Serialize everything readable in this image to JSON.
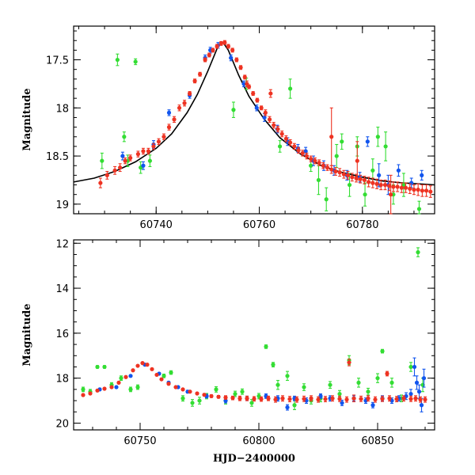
{
  "colors": {
    "green": "#33dd33",
    "blue": "#1155ee",
    "red": "#ee3322",
    "model": "#000000"
  },
  "chart_data": [
    {
      "type": "scatter",
      "panel": "top",
      "xlabel": "",
      "ylabel": "Magnitude",
      "xlim": [
        60724,
        60794
      ],
      "ylim": [
        19.1,
        17.15
      ],
      "y_inverted": true,
      "x_ticks": [
        60740,
        60760,
        60780
      ],
      "y_ticks": [
        17.5,
        18,
        18.5,
        19
      ],
      "x_ticklabels": [
        "60740",
        "60760",
        "60780"
      ],
      "y_ticklabels": [
        "17.5",
        "18",
        "18.5",
        "19"
      ],
      "model_curve": {
        "x": [
          60724,
          60728,
          60732,
          60736,
          60740,
          60743,
          60746,
          60748,
          60750,
          60751,
          60752,
          60753,
          60754,
          60756,
          60758,
          60761,
          60764,
          60768,
          60772,
          60776,
          60780,
          60784,
          60788,
          60794
        ],
        "y": [
          18.77,
          18.73,
          18.66,
          18.56,
          18.42,
          18.27,
          18.05,
          17.86,
          17.62,
          17.49,
          17.36,
          17.32,
          17.4,
          17.66,
          17.88,
          18.12,
          18.31,
          18.48,
          18.6,
          18.67,
          18.72,
          18.76,
          18.78,
          18.8
        ]
      },
      "series": [
        {
          "color": "green",
          "x": [
            60729.5,
            60732.5,
            60733.8,
            60734.5,
            60736,
            60737,
            60738.8,
            60755,
            60757.5,
            60764,
            60766,
            60770,
            60771.5,
            60773,
            60775,
            60776,
            60777.5,
            60779,
            60780.5,
            60782,
            60783,
            60784.5,
            60786,
            60788,
            60791
          ],
          "y": [
            18.55,
            17.5,
            18.3,
            18.55,
            17.52,
            18.62,
            18.55,
            18.02,
            17.75,
            18.4,
            17.8,
            18.6,
            18.75,
            18.95,
            18.5,
            18.35,
            18.8,
            18.4,
            18.9,
            18.65,
            18.3,
            18.4,
            18.9,
            18.8,
            19.05
          ],
          "err": [
            0.08,
            0.06,
            0.05,
            0.06,
            0.03,
            0.06,
            0.06,
            0.08,
            0.06,
            0.06,
            0.1,
            0.06,
            0.15,
            0.12,
            0.12,
            0.08,
            0.12,
            0.1,
            0.12,
            0.12,
            0.1,
            0.15,
            0.1,
            0.12,
            0.08
          ]
        },
        {
          "color": "blue",
          "x": [
            60733.5,
            60737.5,
            60739.5,
            60742.5,
            60746.5,
            60749.5,
            60750.5,
            60752,
            60754.5,
            60757,
            60759.5,
            60761,
            60763.5,
            60765.5,
            60767.5,
            60769,
            60770.5,
            60772.5,
            60774.5,
            60777,
            60779.5,
            60781,
            60783.2,
            60785,
            60787,
            60789.5,
            60791.5
          ],
          "y": [
            18.5,
            18.6,
            18.38,
            18.05,
            17.87,
            17.48,
            17.4,
            17.35,
            17.48,
            17.75,
            18.0,
            18.1,
            18.22,
            18.35,
            18.42,
            18.45,
            18.55,
            18.6,
            18.65,
            18.7,
            18.72,
            18.35,
            18.7,
            18.8,
            18.65,
            18.78,
            18.7
          ],
          "err": [
            0.04,
            0.04,
            0.04,
            0.03,
            0.03,
            0.03,
            0.03,
            0.03,
            0.03,
            0.03,
            0.03,
            0.04,
            0.04,
            0.04,
            0.04,
            0.04,
            0.05,
            0.05,
            0.05,
            0.05,
            0.05,
            0.05,
            0.12,
            0.1,
            0.06,
            0.05,
            0.05
          ]
        },
        {
          "color": "red",
          "x": [
            60729.2,
            60730.5,
            60732,
            60733,
            60734,
            60735,
            60736.5,
            60737.5,
            60738.5,
            60739.5,
            60740.5,
            60741.5,
            60742.5,
            60743.5,
            60744.5,
            60745.5,
            60746.5,
            60747.5,
            60748.5,
            60749.5,
            60750.3,
            60751,
            60751.8,
            60752.6,
            60753.3,
            60754,
            60754.8,
            60755.6,
            60756.4,
            60757.2,
            60758,
            60758.8,
            60759.6,
            60760.4,
            60761.2,
            60762,
            60762.8,
            60763.6,
            60764.4,
            60765.2,
            60766,
            60766.8,
            60767.6,
            60768.4,
            60769.2,
            60770,
            60770.8,
            60771.6,
            60772.4,
            60773.2,
            60774,
            60774.8,
            60775.6,
            60776.4,
            60777.2,
            60778,
            60778.8,
            60779.6,
            60780.4,
            60781.2,
            60782,
            60782.8,
            60783.6,
            60784.4,
            60785.2,
            60786,
            60786.8,
            60787.6,
            60788.4,
            60789.2,
            60790,
            60790.8,
            60791.6,
            60792.4,
            60793.2,
            60757.6,
            60762.2,
            60774,
            60779,
            60785.5
          ],
          "y": [
            18.78,
            18.7,
            18.65,
            18.62,
            18.55,
            18.52,
            18.48,
            18.45,
            18.45,
            18.4,
            18.35,
            18.3,
            18.2,
            18.12,
            18.0,
            17.95,
            17.85,
            17.72,
            17.65,
            17.5,
            17.45,
            17.4,
            17.36,
            17.33,
            17.32,
            17.36,
            17.4,
            17.5,
            17.58,
            17.68,
            17.78,
            17.85,
            17.92,
            18.0,
            18.05,
            18.12,
            18.18,
            18.22,
            18.27,
            18.32,
            18.36,
            18.4,
            18.44,
            18.47,
            18.5,
            18.53,
            18.55,
            18.57,
            18.6,
            18.62,
            18.64,
            18.66,
            18.67,
            18.69,
            18.7,
            18.72,
            18.73,
            18.74,
            18.75,
            18.77,
            18.78,
            18.79,
            18.8,
            18.8,
            18.81,
            18.82,
            18.82,
            18.83,
            18.83,
            18.84,
            18.85,
            18.85,
            18.86,
            18.86,
            18.87,
            17.75,
            17.85,
            18.3,
            18.55,
            18.9
          ],
          "err": [
            0.05,
            0.04,
            0.04,
            0.04,
            0.03,
            0.03,
            0.03,
            0.03,
            0.03,
            0.03,
            0.03,
            0.03,
            0.03,
            0.03,
            0.03,
            0.03,
            0.02,
            0.02,
            0.02,
            0.02,
            0.02,
            0.02,
            0.02,
            0.02,
            0.02,
            0.02,
            0.02,
            0.02,
            0.02,
            0.02,
            0.02,
            0.02,
            0.02,
            0.02,
            0.03,
            0.03,
            0.03,
            0.03,
            0.03,
            0.03,
            0.03,
            0.03,
            0.03,
            0.03,
            0.03,
            0.03,
            0.03,
            0.03,
            0.03,
            0.03,
            0.04,
            0.04,
            0.04,
            0.04,
            0.04,
            0.04,
            0.04,
            0.04,
            0.04,
            0.05,
            0.05,
            0.05,
            0.05,
            0.05,
            0.05,
            0.05,
            0.05,
            0.05,
            0.05,
            0.05,
            0.05,
            0.06,
            0.06,
            0.06,
            0.06,
            0.03,
            0.04,
            0.3,
            0.2,
            0.2
          ]
        }
      ]
    },
    {
      "type": "scatter",
      "panel": "bottom",
      "xlabel": "HJD−2400000",
      "ylabel": "Magnitude",
      "xlim": [
        60722,
        60874
      ],
      "ylim": [
        20.3,
        11.85
      ],
      "y_inverted": true,
      "x_ticks": [
        60750,
        60800,
        60850
      ],
      "y_ticks": [
        12,
        14,
        16,
        18,
        20
      ],
      "x_ticklabels": [
        "60750",
        "60800",
        "60850"
      ],
      "y_ticklabels": [
        "12",
        "14",
        "16",
        "18",
        "20"
      ],
      "series": [
        {
          "color": "green",
          "x": [
            60726,
            60729,
            60732,
            60735,
            60738,
            60742,
            60746,
            60749,
            60760,
            60763,
            60768,
            60772,
            60775,
            60778,
            60782,
            60786,
            60790,
            60793,
            60797,
            60800,
            60803,
            60806,
            60808,
            60812,
            60815,
            60819,
            60822,
            60826,
            60830,
            60834,
            60838,
            60842,
            60846,
            60850,
            60852,
            60856,
            60860,
            60864,
            60867,
            60869
          ],
          "y": [
            18.5,
            18.6,
            17.5,
            17.5,
            18.3,
            18.0,
            18.5,
            18.4,
            17.9,
            17.75,
            18.9,
            19.1,
            19.0,
            18.8,
            18.5,
            19.0,
            18.7,
            18.6,
            19.1,
            18.8,
            16.6,
            17.4,
            18.3,
            17.9,
            19.2,
            18.4,
            19.0,
            18.9,
            18.3,
            18.7,
            17.2,
            18.2,
            18.6,
            18.0,
            16.8,
            18.2,
            18.9,
            17.5,
            12.4,
            18.3
          ],
          "err": [
            0.1,
            0.1,
            0.06,
            0.06,
            0.1,
            0.1,
            0.1,
            0.1,
            0.08,
            0.08,
            0.12,
            0.15,
            0.15,
            0.12,
            0.12,
            0.15,
            0.12,
            0.12,
            0.15,
            0.12,
            0.08,
            0.1,
            0.2,
            0.2,
            0.2,
            0.15,
            0.15,
            0.15,
            0.15,
            0.15,
            0.2,
            0.2,
            0.15,
            0.2,
            0.08,
            0.2,
            0.15,
            0.2,
            0.2,
            0.3
          ]
        },
        {
          "color": "blue",
          "x": [
            60733,
            60740,
            60746,
            60752,
            60758,
            60762,
            60766,
            60770,
            60778,
            60786,
            60795,
            60803,
            60808,
            60812,
            60815,
            60820,
            60826,
            60830,
            60835,
            60840,
            60845,
            60848,
            60852,
            60856,
            60859,
            60862,
            60864,
            60865.5,
            60866.5,
            60867.5,
            60868.5,
            60869.5
          ],
          "y": [
            18.5,
            18.4,
            17.9,
            17.4,
            17.8,
            18.2,
            18.4,
            18.6,
            18.8,
            19.0,
            18.9,
            18.8,
            18.9,
            19.3,
            18.9,
            19.0,
            18.8,
            18.9,
            19.1,
            18.9,
            19.0,
            19.2,
            18.9,
            19.0,
            18.9,
            18.8,
            18.7,
            17.5,
            18.2,
            18.6,
            19.2,
            18.0
          ],
          "err": [
            0.05,
            0.05,
            0.04,
            0.03,
            0.04,
            0.05,
            0.05,
            0.06,
            0.08,
            0.1,
            0.1,
            0.1,
            0.12,
            0.12,
            0.1,
            0.12,
            0.1,
            0.12,
            0.12,
            0.12,
            0.12,
            0.12,
            0.12,
            0.12,
            0.12,
            0.15,
            0.2,
            0.4,
            0.3,
            0.3,
            0.3,
            0.4
          ]
        },
        {
          "color": "red",
          "x": [
            60726,
            60729,
            60732,
            60735,
            60738,
            60741,
            60744,
            60747,
            60749,
            60751,
            60753,
            60755,
            60757,
            60759,
            60762,
            60765,
            60768,
            60771,
            60774,
            60777,
            60780,
            60783,
            60786,
            60789,
            60792,
            60795,
            60798,
            60801,
            60804,
            60807,
            60810,
            60813,
            60816,
            60819,
            60822,
            60825,
            60828,
            60831,
            60834,
            60837,
            60838,
            60840,
            60843,
            60846,
            60849,
            60852,
            60855,
            60858,
            60861,
            60864,
            60866,
            60868,
            60870,
            60854
          ],
          "y": [
            18.75,
            18.68,
            18.55,
            18.47,
            18.4,
            18.2,
            17.95,
            17.65,
            17.45,
            17.33,
            17.4,
            17.6,
            17.85,
            18.05,
            18.25,
            18.4,
            18.5,
            18.6,
            18.68,
            18.74,
            18.8,
            18.83,
            18.86,
            18.88,
            18.9,
            18.9,
            18.92,
            18.93,
            18.9,
            18.95,
            18.9,
            18.93,
            18.95,
            18.92,
            18.9,
            18.95,
            18.93,
            18.9,
            18.92,
            18.95,
            17.3,
            18.9,
            18.92,
            18.9,
            18.95,
            18.92,
            18.9,
            18.93,
            18.9,
            18.92,
            18.9,
            18.95,
            18.95,
            17.8
          ],
          "err": [
            0.05,
            0.04,
            0.04,
            0.03,
            0.03,
            0.03,
            0.03,
            0.02,
            0.02,
            0.02,
            0.02,
            0.02,
            0.02,
            0.03,
            0.03,
            0.03,
            0.03,
            0.04,
            0.04,
            0.05,
            0.06,
            0.06,
            0.08,
            0.08,
            0.1,
            0.1,
            0.1,
            0.1,
            0.1,
            0.12,
            0.12,
            0.12,
            0.12,
            0.12,
            0.12,
            0.12,
            0.12,
            0.12,
            0.12,
            0.12,
            0.15,
            0.15,
            0.12,
            0.12,
            0.12,
            0.12,
            0.12,
            0.12,
            0.12,
            0.12,
            0.12,
            0.12,
            0.12,
            0.1
          ]
        }
      ]
    }
  ]
}
